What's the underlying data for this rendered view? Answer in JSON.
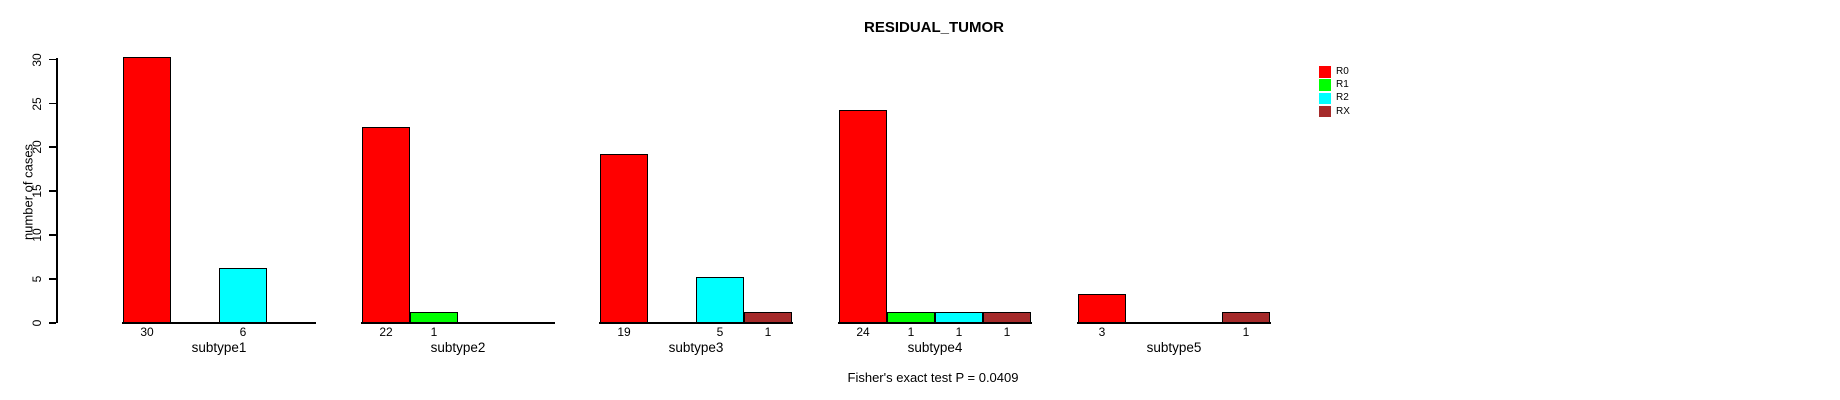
{
  "figure": {
    "title": "RESIDUAL_TUMOR",
    "y_axis_label": "number of cases",
    "footnote": "Fisher's exact test P = 0.0409"
  },
  "chart_data": {
    "type": "bar",
    "title": "RESIDUAL_TUMOR",
    "xlabel": "",
    "ylabel": "number of cases",
    "categories": [
      "subtype1",
      "subtype2",
      "subtype3",
      "subtype4",
      "subtype5"
    ],
    "series": [
      {
        "name": "R0",
        "color": "#FF0000",
        "values": [
          30,
          22,
          19,
          24,
          3
        ]
      },
      {
        "name": "R1",
        "color": "#00FF00",
        "values": [
          0,
          1,
          0,
          1,
          0
        ]
      },
      {
        "name": "R2",
        "color": "#00FFFF",
        "values": [
          6,
          0,
          5,
          1,
          0
        ]
      },
      {
        "name": "RX",
        "color": "#A52A2A",
        "values": [
          0,
          0,
          1,
          1,
          1
        ]
      }
    ],
    "ylim": [
      0,
      30
    ],
    "yticks": [
      0,
      5,
      10,
      15,
      20,
      25,
      30
    ],
    "grid": false,
    "legend_position": "top-right",
    "value_labels": "non-zero bar values shown below bars",
    "annotation": "Fisher's exact test P = 0.0409"
  }
}
